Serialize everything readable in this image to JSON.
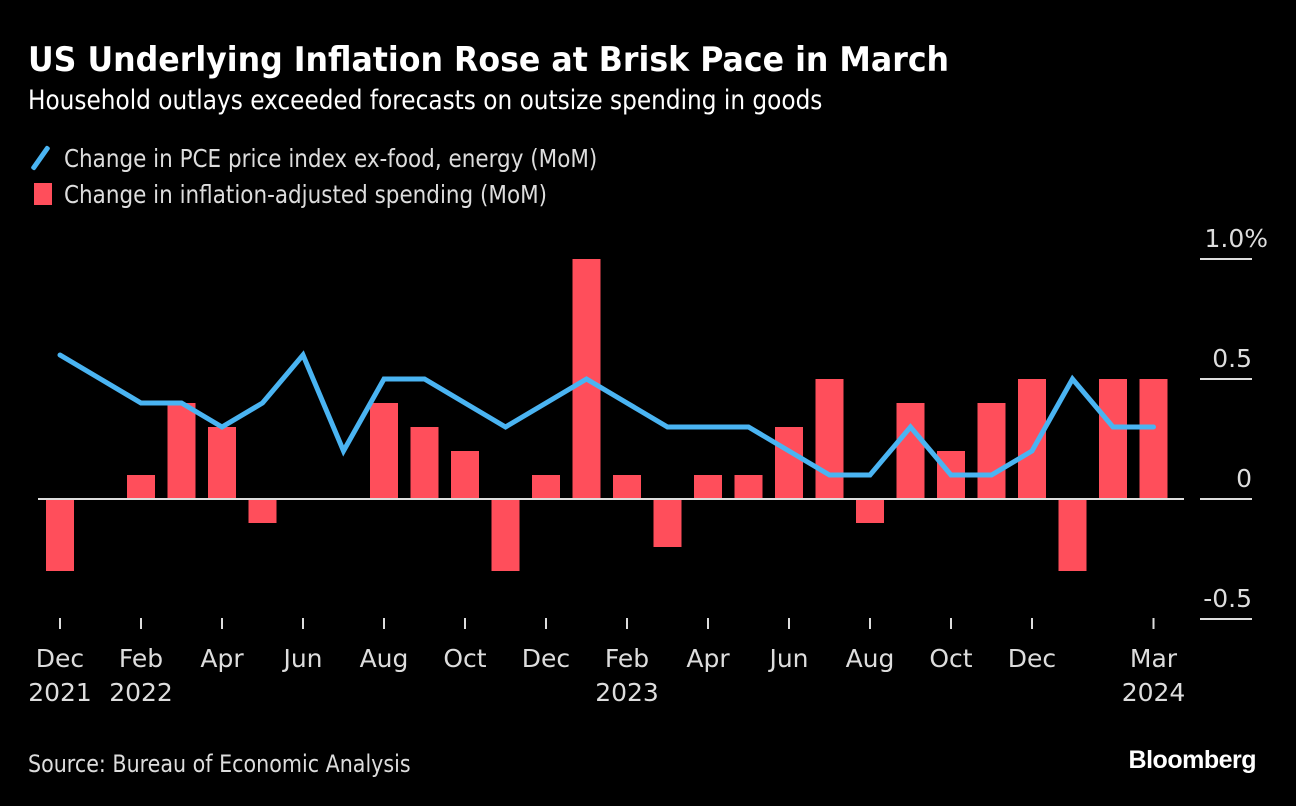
{
  "header": {
    "title": "US Underlying Inflation Rose at Brisk Pace in March",
    "subtitle": "Household outlays exceeded forecasts on outsize spending in goods"
  },
  "legend": {
    "items": [
      {
        "label": "Change in PCE price index ex-food, energy (MoM)",
        "icon": "line-swatch-icon"
      },
      {
        "label": "Change in inflation-adjusted spending (MoM)",
        "icon": "bar-swatch-icon"
      }
    ]
  },
  "footer": {
    "source": "Source: Bureau of Economic Analysis",
    "brand": "Bloomberg"
  },
  "colors": {
    "background": "#000000",
    "line": "#4ab4f2",
    "bar": "#ff4e5b",
    "axis": "#dddddd"
  },
  "chart_data": {
    "type": "bar",
    "title": "US Underlying Inflation Rose at Brisk Pace in March",
    "subtitle": "Household outlays exceeded forecasts on outsize spending in goods",
    "xlabel": "",
    "ylabel": "",
    "ylim": [
      -0.5,
      1.0
    ],
    "y_ticks": [
      {
        "value": 1.0,
        "label": "1.0%"
      },
      {
        "value": 0.5,
        "label": "0.5"
      },
      {
        "value": 0,
        "label": "0"
      },
      {
        "value": -0.5,
        "label": "-0.5"
      }
    ],
    "y_axis_position": "right",
    "grid": false,
    "legend_position": "top-left",
    "categories": [
      "Dec 2021",
      "Jan 2022",
      "Feb 2022",
      "Mar 2022",
      "Apr 2022",
      "May 2022",
      "Jun 2022",
      "Jul 2022",
      "Aug 2022",
      "Sep 2022",
      "Oct 2022",
      "Nov 2022",
      "Dec 2022",
      "Jan 2023",
      "Feb 2023",
      "Mar 2023",
      "Apr 2023",
      "May 2023",
      "Jun 2023",
      "Jul 2023",
      "Aug 2023",
      "Sep 2023",
      "Oct 2023",
      "Nov 2023",
      "Dec 2023",
      "Jan 2024",
      "Feb 2024",
      "Mar 2024"
    ],
    "x_ticks": [
      {
        "index": 0,
        "line1": "Dec",
        "line2": "2021"
      },
      {
        "index": 2,
        "line1": "Feb",
        "line2": "2022"
      },
      {
        "index": 4,
        "line1": "Apr",
        "line2": ""
      },
      {
        "index": 6,
        "line1": "Jun",
        "line2": ""
      },
      {
        "index": 8,
        "line1": "Aug",
        "line2": ""
      },
      {
        "index": 10,
        "line1": "Oct",
        "line2": ""
      },
      {
        "index": 12,
        "line1": "Dec",
        "line2": ""
      },
      {
        "index": 14,
        "line1": "Feb",
        "line2": "2023"
      },
      {
        "index": 16,
        "line1": "Apr",
        "line2": ""
      },
      {
        "index": 18,
        "line1": "Jun",
        "line2": ""
      },
      {
        "index": 20,
        "line1": "Aug",
        "line2": ""
      },
      {
        "index": 22,
        "line1": "Oct",
        "line2": ""
      },
      {
        "index": 24,
        "line1": "Dec",
        "line2": ""
      },
      {
        "index": 27,
        "line1": "Mar",
        "line2": "2024"
      }
    ],
    "series": [
      {
        "name": "Change in PCE price index ex-food, energy (MoM)",
        "type": "line",
        "values": [
          0.6,
          0.5,
          0.4,
          0.4,
          0.3,
          0.4,
          0.6,
          0.2,
          0.5,
          0.5,
          0.4,
          0.3,
          0.4,
          0.5,
          0.4,
          0.3,
          0.3,
          0.3,
          0.2,
          0.1,
          0.1,
          0.3,
          0.1,
          0.1,
          0.2,
          0.5,
          0.3,
          0.3
        ]
      },
      {
        "name": "Change in inflation-adjusted spending (MoM)",
        "type": "bar",
        "values": [
          -0.3,
          0.0,
          0.1,
          0.4,
          0.3,
          -0.1,
          0.0,
          0.0,
          0.4,
          0.3,
          0.2,
          -0.3,
          0.1,
          1.0,
          0.1,
          -0.2,
          0.1,
          0.1,
          0.3,
          0.5,
          -0.1,
          0.4,
          0.2,
          0.4,
          0.5,
          -0.3,
          0.5,
          0.5
        ]
      }
    ]
  }
}
